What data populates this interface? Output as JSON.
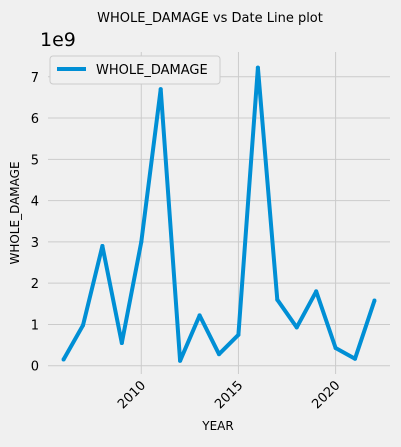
{
  "chart_data": {
    "type": "line",
    "title": "WHOLE_DAMAGE vs Date Line plot",
    "xlabel": "YEAR",
    "ylabel": "WHOLE_DAMAGE",
    "y_scale_label": "1e9",
    "legend_position": "top-left",
    "grid": true,
    "xlim": [
      2005.2,
      2022.8
    ],
    "ylim": [
      -0.2,
      7.6
    ],
    "x_ticks": [
      2010,
      2015,
      2020
    ],
    "y_ticks": [
      0,
      1,
      2,
      3,
      4,
      5,
      6,
      7
    ],
    "x": [
      2006,
      2007,
      2008,
      2009,
      2010,
      2011,
      2012,
      2013,
      2014,
      2015,
      2016,
      2017,
      2018,
      2019,
      2020,
      2021,
      2022
    ],
    "series": [
      {
        "name": "WHOLE_DAMAGE",
        "color": "#008fd5",
        "values": [
          0.15,
          0.98,
          2.9,
          0.55,
          3.0,
          6.7,
          0.12,
          1.22,
          0.28,
          0.75,
          7.22,
          1.6,
          0.93,
          1.8,
          0.43,
          0.17,
          1.58
        ]
      }
    ]
  }
}
